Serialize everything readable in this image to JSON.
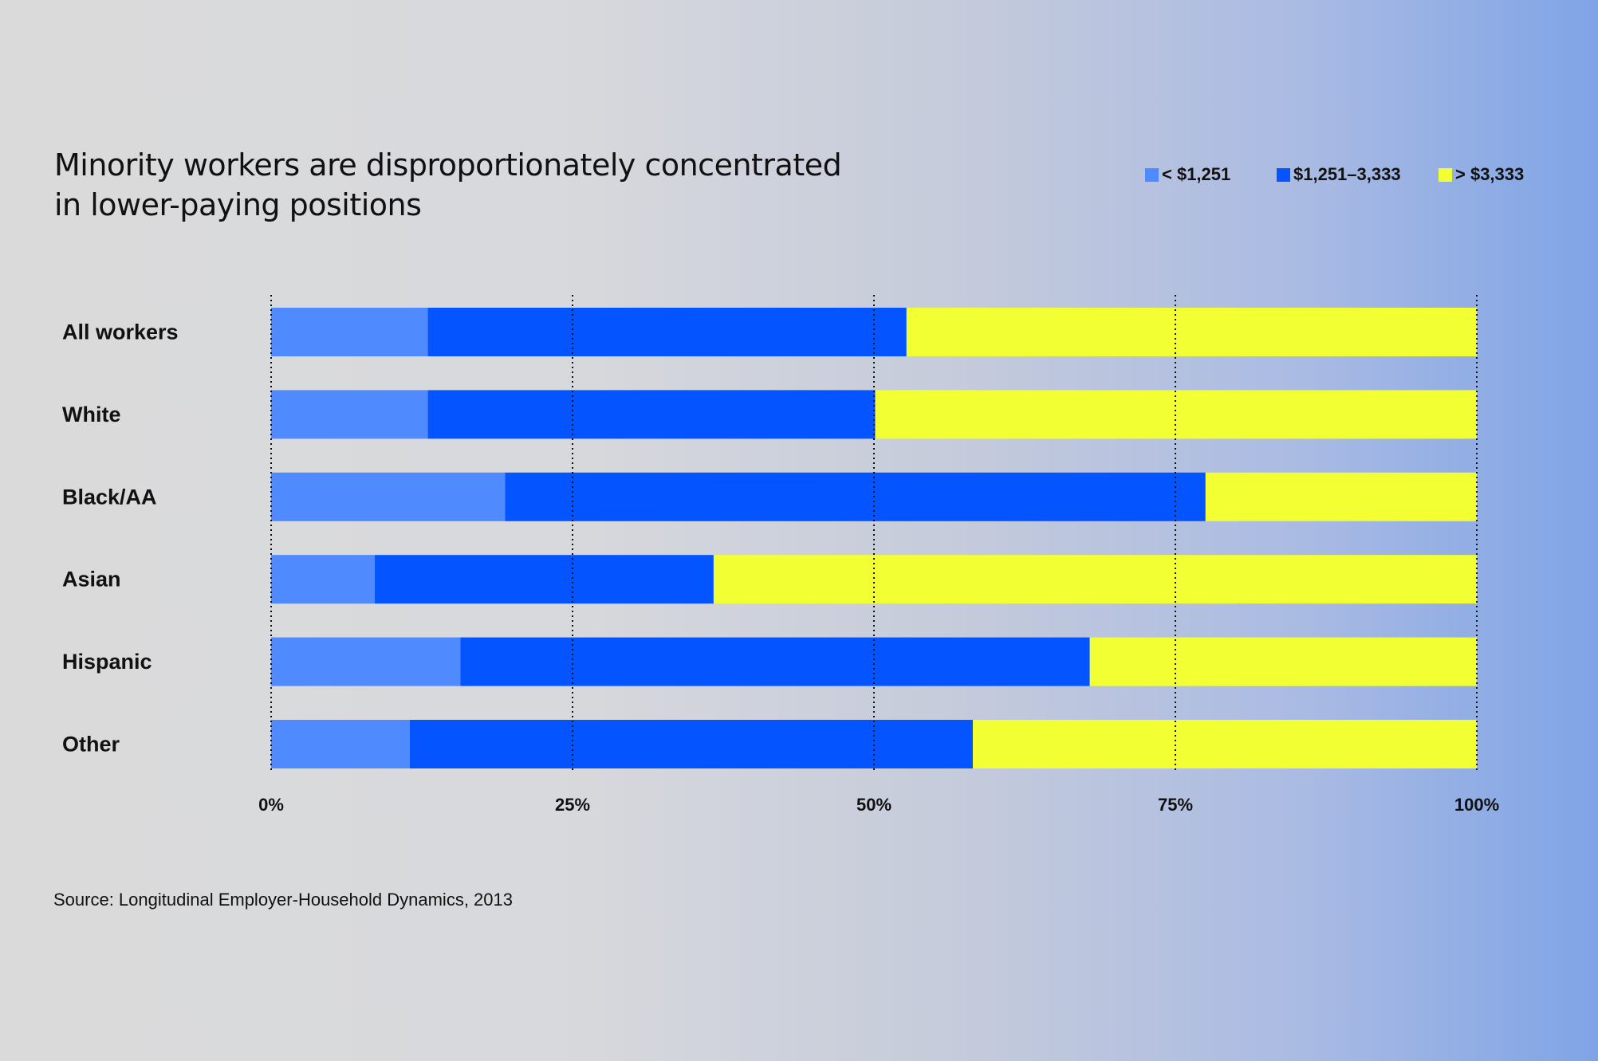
{
  "title_line1": "Minority workers are disproportionately concentrated",
  "title_line2": "in lower-paying positions",
  "source": "Source: Longitudinal Employer-Household Dynamics, 2013",
  "colors": {
    "low": "#4f8bff",
    "mid": "#0455ff",
    "high": "#f2ff33"
  },
  "chart_data": {
    "type": "bar",
    "orientation": "horizontal",
    "stacked": true,
    "title": "Minority workers are disproportionately concentrated in lower-paying positions",
    "xlabel": "",
    "ylabel": "",
    "xlim": [
      0,
      100
    ],
    "x_ticks": [
      "0%",
      "25%",
      "50%",
      "75%",
      "100%"
    ],
    "grid": "vertical dotted lines at ticks",
    "legend_position": "top-right",
    "categories": [
      "All workers",
      "White",
      "Black/AA",
      "Asian",
      "Hispanic",
      "Other"
    ],
    "series": [
      {
        "name": "< $1,251",
        "color": "#4f8bff",
        "values": [
          13,
          13,
          19.4,
          8.6,
          15.7,
          11.5
        ]
      },
      {
        "name": "$1,251–3,333",
        "color": "#0455ff",
        "values": [
          39.7,
          37.1,
          58.1,
          28.1,
          52.2,
          46.7
        ]
      },
      {
        "name": "> $3,333",
        "color": "#f2ff33",
        "values": [
          47.3,
          49.9,
          22.5,
          63.3,
          32.1,
          41.8
        ]
      }
    ]
  }
}
